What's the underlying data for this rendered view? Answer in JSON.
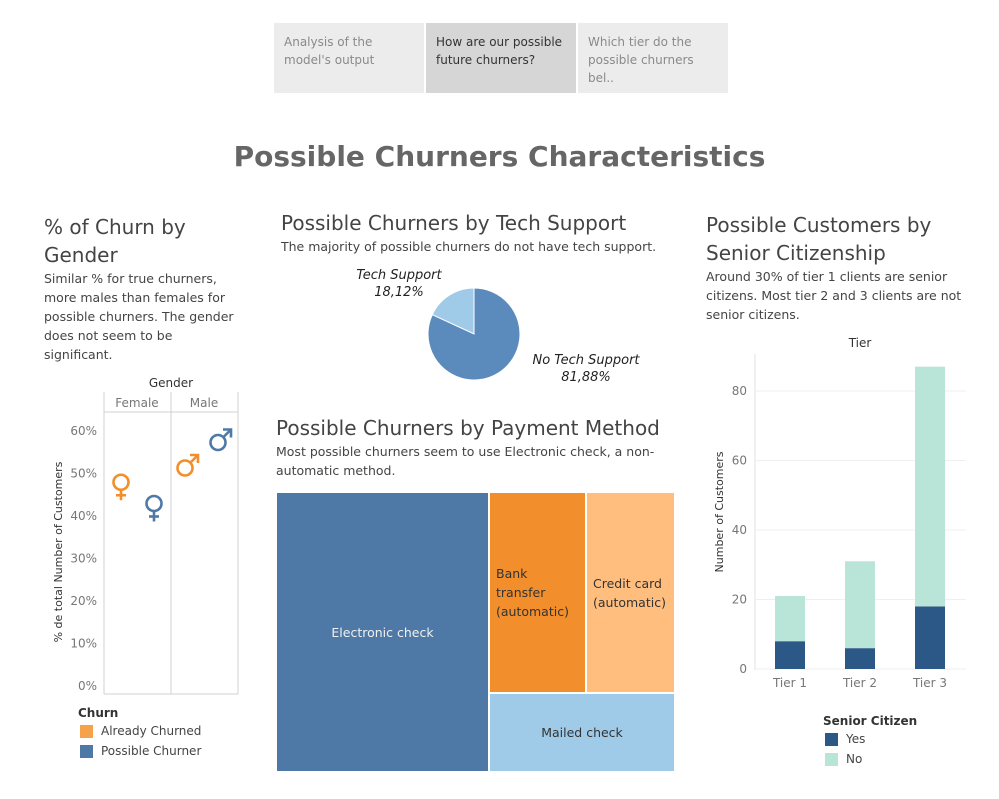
{
  "tabs": [
    {
      "label": "Analysis of the model's output",
      "active": false
    },
    {
      "label": "How are our possible future churners?",
      "active": true
    },
    {
      "label": "Which tier do the possible churners bel..",
      "active": false
    }
  ],
  "page_title": "Possible Churners Characteristics",
  "gender_section": {
    "title": "% of Churn by Gender",
    "description": "Similar % for true churners, more males than females for possible churners. The gender does not seem to be significant."
  },
  "tech_section": {
    "title": "Possible Churners by Tech Support",
    "description": "The majority of possible churners do not have tech support."
  },
  "payment_section": {
    "title": "Possible Churners by Payment Method",
    "description": "Most possible churners seem to use Electronic check, a non-automatic method."
  },
  "senior_section": {
    "title": "Possible Customers by Senior Citizenship",
    "description": "Around 30% of tier 1 clients are senior citizens. Most tier 2 and 3 clients are not senior citizens."
  },
  "colors": {
    "already_churned": "#f28e2b",
    "possible_churner": "#4e79a7",
    "tech_support": "#a0cbe8",
    "no_tech_support": "#5b8bbd",
    "electronic_check": "#4e79a7",
    "bank_transfer": "#f28e2b",
    "credit_card": "#ffbe7d",
    "mailed_check": "#a0cbe8",
    "senior_yes": "#2c5887",
    "senior_no": "#b9e4d8"
  },
  "chart_data": [
    {
      "type": "scatter",
      "column_header": "Gender",
      "categories": [
        "Female",
        "Male"
      ],
      "ylabel": "% de total Number of Customers",
      "ylim": [
        0,
        62
      ],
      "yticks": [
        "0%",
        "10%",
        "20%",
        "30%",
        "40%",
        "50%",
        "60%"
      ],
      "series": [
        {
          "name": "Already Churned",
          "icon_female": "female-symbol-icon",
          "icon_male": "male-symbol-icon",
          "values": [
            47,
            52
          ]
        },
        {
          "name": "Possible Churner",
          "icon_female": "female-symbol-icon",
          "icon_male": "male-symbol-icon",
          "values": [
            42,
            58
          ]
        }
      ],
      "legend_title": "Churn",
      "legend": [
        "Already Churned",
        "Possible Churner"
      ]
    },
    {
      "type": "pie",
      "labels": [
        "Tech Support",
        "No Tech Support"
      ],
      "values": [
        18.12,
        81.88
      ],
      "value_labels": [
        "18,12%",
        "81,88%"
      ]
    },
    {
      "type": "treemap",
      "labels": [
        "Electronic check",
        "Bank transfer (automatic)",
        "Credit card (automatic)",
        "Mailed check"
      ]
    },
    {
      "type": "bar",
      "stacked": true,
      "column_header": "Tier",
      "categories": [
        "Tier 1",
        "Tier 2",
        "Tier 3"
      ],
      "ylabel": "Number of Customers",
      "ylim": [
        0,
        90
      ],
      "yticks": [
        0,
        20,
        40,
        60,
        80
      ],
      "series": [
        {
          "name": "Yes",
          "values": [
            8,
            6,
            18
          ]
        },
        {
          "name": "No",
          "values": [
            13,
            25,
            69
          ]
        }
      ],
      "legend_title": "Senior Citizen",
      "legend": [
        "Yes",
        "No"
      ]
    }
  ]
}
